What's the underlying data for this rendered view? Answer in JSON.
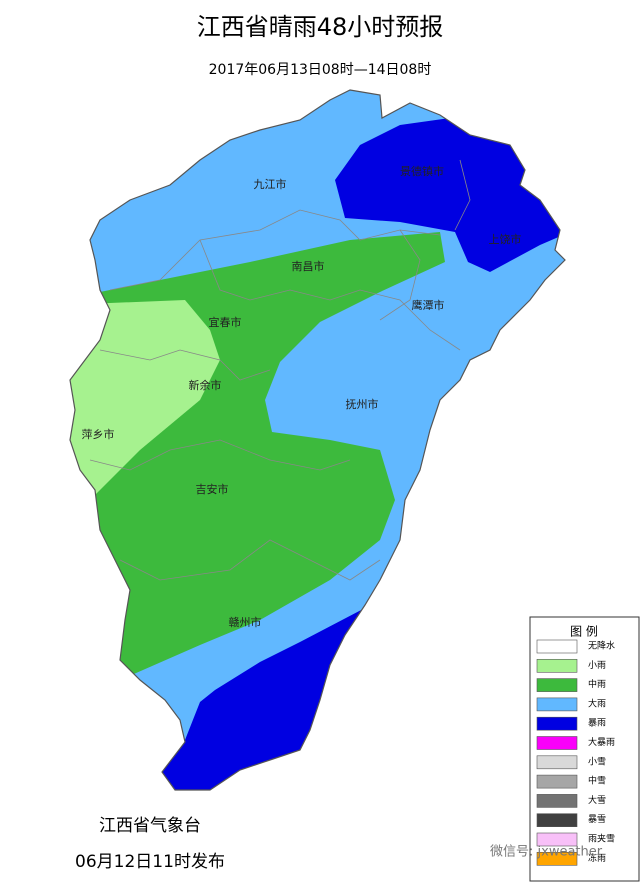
{
  "header": {
    "title": "江西省晴雨48小时预报",
    "subtitle": "2017年06月13日08时—14日08时"
  },
  "cities": [
    "九江市",
    "景德镇市",
    "上饶市",
    "南昌市",
    "鹰潭市",
    "宜春市",
    "新余市",
    "抚州市",
    "萍乡市",
    "吉安市",
    "赣州市"
  ],
  "legend": {
    "title": "图 例",
    "items": [
      {
        "label": "无降水",
        "color": "#ffffff"
      },
      {
        "label": "小雨",
        "color": "#a6f28f"
      },
      {
        "label": "中雨",
        "color": "#3dba3d"
      },
      {
        "label": "大雨",
        "color": "#61b8ff"
      },
      {
        "label": "暴雨",
        "color": "#0000e1"
      },
      {
        "label": "大暴雨",
        "color": "#fa00fa"
      },
      {
        "label": "小雪",
        "color": "#d9d9d9"
      },
      {
        "label": "中雪",
        "color": "#a6a6a6"
      },
      {
        "label": "大雪",
        "color": "#737373"
      },
      {
        "label": "暴雪",
        "color": "#404040"
      },
      {
        "label": "雨夹雪",
        "color": "#f8c0f8"
      },
      {
        "label": "冻雨",
        "color": "#ffa500"
      }
    ]
  },
  "footer": {
    "issuer": "江西省气象台",
    "issued": "06月12日11时发布",
    "watermark": "微信号: jxweather"
  }
}
